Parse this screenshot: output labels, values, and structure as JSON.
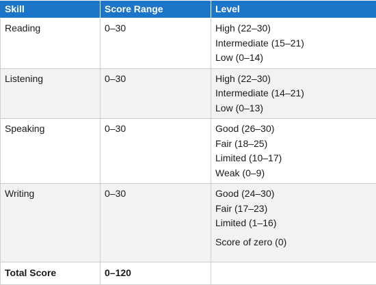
{
  "headers": {
    "skill": "Skill",
    "range": "Score Range",
    "level": "Level"
  },
  "rows": [
    {
      "skill": "Reading",
      "range": "0–30",
      "levels": [
        "High (22–30)",
        "Intermediate (15–21)",
        "Low (0–14)"
      ]
    },
    {
      "skill": "Listening",
      "range": "0–30",
      "levels": [
        "High (22–30)",
        "Intermediate (14–21)",
        "Low (0–13)"
      ]
    },
    {
      "skill": "Speaking",
      "range": "0–30",
      "levels": [
        "Good (26–30)",
        "Fair (18–25)",
        "Limited (10–17)",
        "Weak (0–9)"
      ]
    },
    {
      "skill": "Writing",
      "range": "0–30",
      "levels": [
        "Good (24–30)",
        "Fair (17–23)",
        "Limited (1–16)"
      ],
      "extra": "Score of zero (0)"
    }
  ],
  "total": {
    "label": "Total Score",
    "range": "0–120"
  },
  "colors": {
    "header_bg": "#1d75c9",
    "header_text": "#ffffff",
    "shaded_row": "#f2f2f2",
    "border": "#cfcfcf"
  }
}
